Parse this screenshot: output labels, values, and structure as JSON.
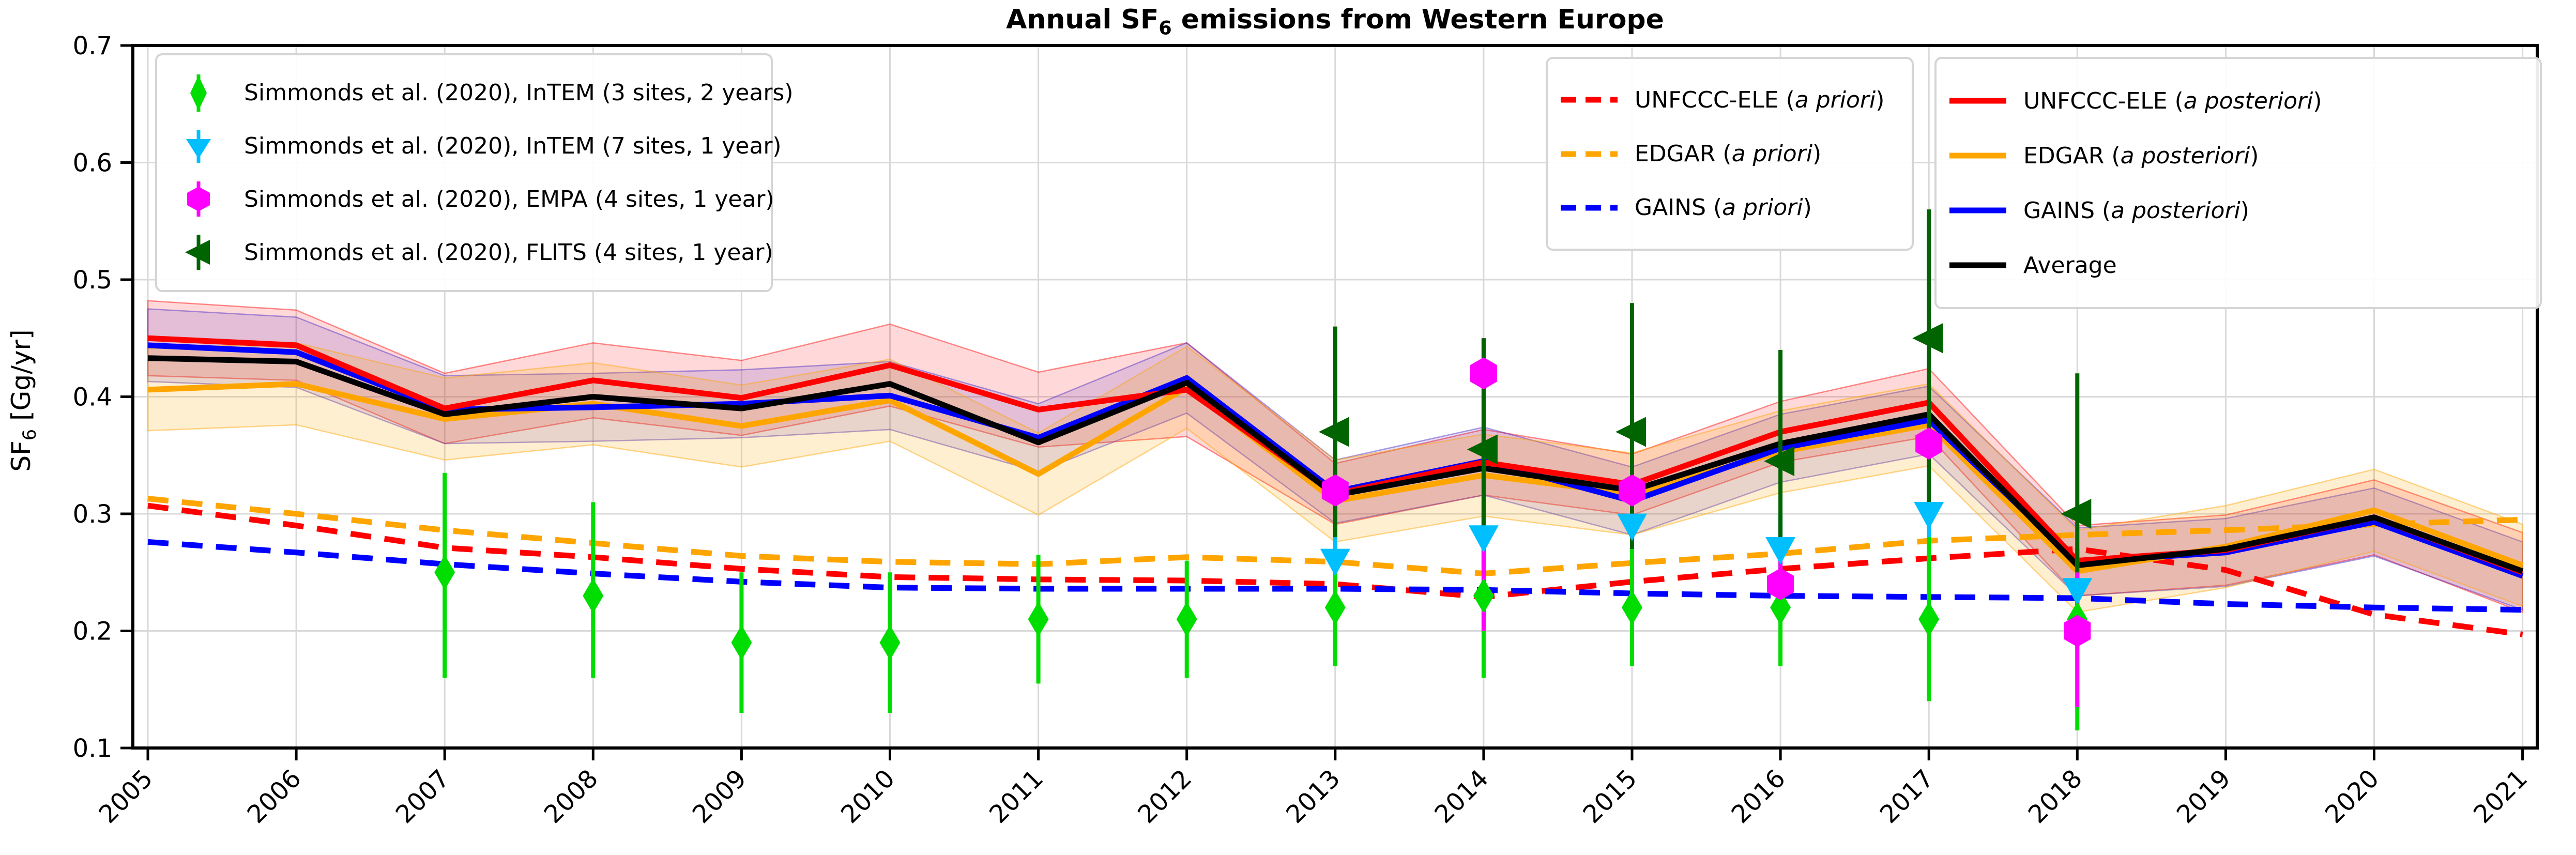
{
  "title": {
    "prefix": "Annual SF",
    "sub": "6",
    "suffix": " emissions from Western Europe"
  },
  "axes": {
    "ylabel": {
      "prefix": "SF",
      "sub": "6",
      "suffix": " [Gg/yr]"
    },
    "yticks": [
      "0.7",
      "0.6",
      "0.5",
      "0.4",
      "0.3",
      "0.2",
      "0.1"
    ],
    "ytick_values": [
      0.7,
      0.6,
      0.5,
      0.4,
      0.3,
      0.2,
      0.1
    ],
    "xticks": [
      "2005",
      "2006",
      "2007",
      "2008",
      "2009",
      "2010",
      "2011",
      "2012",
      "2013",
      "2014",
      "2015",
      "2016",
      "2017",
      "2018",
      "2019",
      "2020",
      "2021"
    ],
    "ylim": [
      0.1,
      0.7
    ],
    "grid": true
  },
  "colors": {
    "red": "#ff0000",
    "orange": "#ffa500",
    "blue": "#0000ff",
    "black": "#000000",
    "lime": "#00dd00",
    "cyan": "#00bfff",
    "magenta": "#ff00ff",
    "darkgreen": "#006400",
    "grid": "#d9d9d9",
    "spine": "#000000"
  },
  "chart_data": {
    "type": "line",
    "x": [
      2005,
      2006,
      2007,
      2008,
      2009,
      2010,
      2011,
      2012,
      2013,
      2014,
      2015,
      2016,
      2017,
      2018,
      2019,
      2020,
      2021
    ],
    "title": "Annual SF6 emissions from Western Europe",
    "xlabel": "",
    "ylabel": "SF6 [Gg/yr]",
    "ylim": [
      0.1,
      0.7
    ],
    "legend_position": "upper left / upper right",
    "series": [
      {
        "name": "UNFCCC-ELE (a priori)",
        "color": "#ff0000",
        "dash": true,
        "values": [
          0.307,
          0.29,
          0.271,
          0.263,
          0.253,
          0.246,
          0.244,
          0.243,
          0.24,
          0.229,
          0.242,
          0.253,
          0.262,
          0.27,
          0.252,
          0.214,
          0.197
        ]
      },
      {
        "name": "EDGAR (a priori)",
        "color": "#ffa500",
        "dash": true,
        "values": [
          0.313,
          0.3,
          0.286,
          0.275,
          0.264,
          0.259,
          0.257,
          0.263,
          0.259,
          0.249,
          0.258,
          0.266,
          0.277,
          0.282,
          0.286,
          0.291,
          0.295
        ]
      },
      {
        "name": "GAINS (a priori)",
        "color": "#0000ff",
        "dash": true,
        "values": [
          0.276,
          0.267,
          0.257,
          0.249,
          0.242,
          0.237,
          0.236,
          0.236,
          0.236,
          0.235,
          0.232,
          0.23,
          0.229,
          0.228,
          0.223,
          0.22,
          0.218
        ]
      },
      {
        "name": "UNFCCC-ELE (a posteriori)",
        "color": "#ff0000",
        "dash": false,
        "values": [
          0.45,
          0.444,
          0.39,
          0.414,
          0.399,
          0.427,
          0.389,
          0.406,
          0.317,
          0.344,
          0.325,
          0.37,
          0.395,
          0.26,
          0.269,
          0.297,
          0.25
        ]
      },
      {
        "name": "EDGAR (a posteriori)",
        "color": "#ffa500",
        "dash": false,
        "values": [
          0.406,
          0.411,
          0.381,
          0.394,
          0.375,
          0.397,
          0.334,
          0.408,
          0.311,
          0.333,
          0.317,
          0.353,
          0.376,
          0.251,
          0.272,
          0.303,
          0.256
        ]
      },
      {
        "name": "GAINS (a posteriori)",
        "color": "#0000ff",
        "dash": false,
        "values": [
          0.444,
          0.438,
          0.389,
          0.391,
          0.394,
          0.401,
          0.365,
          0.416,
          0.319,
          0.345,
          0.311,
          0.356,
          0.38,
          0.259,
          0.267,
          0.293,
          0.247
        ]
      },
      {
        "name": "Average",
        "color": "#000000",
        "dash": false,
        "values": [
          0.433,
          0.43,
          0.385,
          0.4,
          0.39,
          0.411,
          0.361,
          0.412,
          0.316,
          0.339,
          0.32,
          0.36,
          0.385,
          0.256,
          0.27,
          0.297,
          0.251
        ]
      }
    ],
    "bands": [
      {
        "name": "UNFCCC-ELE uncertainty",
        "color": "255,0,0",
        "alpha": 0.15,
        "hi": [
          0.482,
          0.474,
          0.42,
          0.446,
          0.431,
          0.462,
          0.421,
          0.446,
          0.343,
          0.372,
          0.351,
          0.396,
          0.424,
          0.29,
          0.299,
          0.329,
          0.284
        ],
        "lo": [
          0.418,
          0.414,
          0.36,
          0.382,
          0.367,
          0.392,
          0.357,
          0.366,
          0.291,
          0.316,
          0.299,
          0.344,
          0.366,
          0.23,
          0.239,
          0.265,
          0.216
        ]
      },
      {
        "name": "GAINS uncertainty",
        "color": "70,40,200",
        "alpha": 0.15,
        "hi": [
          0.475,
          0.468,
          0.418,
          0.42,
          0.423,
          0.43,
          0.394,
          0.446,
          0.346,
          0.374,
          0.34,
          0.385,
          0.409,
          0.288,
          0.296,
          0.322,
          0.276
        ],
        "lo": [
          0.413,
          0.408,
          0.36,
          0.362,
          0.365,
          0.372,
          0.336,
          0.386,
          0.292,
          0.316,
          0.282,
          0.327,
          0.351,
          0.23,
          0.238,
          0.264,
          0.218
        ]
      },
      {
        "name": "EDGAR uncertainty",
        "color": "255,165,0",
        "alpha": 0.18,
        "hi": [
          0.441,
          0.446,
          0.416,
          0.429,
          0.41,
          0.432,
          0.369,
          0.443,
          0.346,
          0.368,
          0.352,
          0.388,
          0.411,
          0.286,
          0.307,
          0.338,
          0.291
        ],
        "lo": [
          0.371,
          0.376,
          0.346,
          0.359,
          0.34,
          0.362,
          0.299,
          0.373,
          0.276,
          0.298,
          0.282,
          0.318,
          0.341,
          0.216,
          0.237,
          0.268,
          0.221
        ]
      }
    ],
    "scatter": [
      {
        "name": "Simmonds et al. (2020), InTEM (7 sites, 1 year)",
        "marker": "triangle-down",
        "color": "#00bfff",
        "years": [
          2013,
          2014,
          2015,
          2016,
          2017,
          2018
        ],
        "values": [
          0.26,
          0.28,
          0.29,
          0.27,
          0.3,
          0.235
        ],
        "err_lo": [
          0.23,
          0.25,
          0.26,
          0.24,
          0.24,
          0.19
        ],
        "err_hi": [
          0.29,
          0.31,
          0.32,
          0.3,
          0.33,
          0.27
        ]
      },
      {
        "name": "Simmonds et al. (2020), InTEM (3 sites, 2 years)",
        "marker": "thin-diamond",
        "color": "#00dd00",
        "years": [
          2007,
          2008,
          2009,
          2010,
          2011,
          2012,
          2013,
          2014,
          2015,
          2016,
          2017,
          2018
        ],
        "values": [
          0.25,
          0.23,
          0.19,
          0.19,
          0.21,
          0.21,
          0.22,
          0.23,
          0.22,
          0.22,
          0.21,
          0.21
        ],
        "err_lo": [
          0.16,
          0.16,
          0.13,
          0.13,
          0.155,
          0.16,
          0.17,
          0.16,
          0.17,
          0.17,
          0.14,
          0.115
        ],
        "err_hi": [
          0.335,
          0.31,
          0.25,
          0.25,
          0.265,
          0.26,
          0.27,
          0.3,
          0.27,
          0.27,
          0.28,
          0.27
        ]
      },
      {
        "name": "Simmonds et al. (2020), EMPA (4 sites, 1 year)",
        "marker": "hexagon",
        "color": "#ff00ff",
        "years": [
          2013,
          2014,
          2015,
          2016,
          2017,
          2018
        ],
        "values": [
          0.32,
          0.42,
          0.32,
          0.24,
          0.36,
          0.2
        ],
        "err_lo": [
          0.3,
          0.2,
          0.3,
          0.22,
          0.34,
          0.135
        ],
        "err_hi": [
          0.34,
          0.45,
          0.34,
          0.26,
          0.38,
          0.25
        ]
      },
      {
        "name": "Simmonds et al. (2020), FLITS (4 sites, 1 year)",
        "marker": "triangle-left",
        "color": "#006400",
        "years": [
          2013,
          2014,
          2015,
          2016,
          2017,
          2018
        ],
        "values": [
          0.37,
          0.355,
          0.37,
          0.345,
          0.45,
          0.3
        ],
        "err_lo": [
          0.28,
          0.27,
          0.27,
          0.27,
          0.31,
          0.25
        ],
        "err_hi": [
          0.46,
          0.45,
          0.48,
          0.44,
          0.56,
          0.42
        ]
      }
    ]
  },
  "legend_markers": {
    "items": [
      {
        "label": "Simmonds et al. (2020), InTEM (3 sites, 2 years)",
        "marker": "thin-diamond",
        "color": "#00dd00"
      },
      {
        "label": "Simmonds et al. (2020), InTEM (7 sites, 1 year)",
        "marker": "triangle-down",
        "color": "#00bfff"
      },
      {
        "label": "Simmonds et al. (2020), EMPA (4 sites, 1 year)",
        "marker": "hexagon",
        "color": "#ff00ff"
      },
      {
        "label": "Simmonds et al. (2020), FLITS (4 sites, 1 year)",
        "marker": "triangle-left",
        "color": "#006400"
      }
    ]
  },
  "legend_priori": {
    "items": [
      {
        "label": "UNFCCC-ELE",
        "qualifier": "a priori",
        "color": "#ff0000",
        "dash": true
      },
      {
        "label": "EDGAR",
        "qualifier": "a priori",
        "color": "#ffa500",
        "dash": true
      },
      {
        "label": "GAINS",
        "qualifier": "a priori",
        "color": "#0000ff",
        "dash": true
      }
    ]
  },
  "legend_posteriori": {
    "items": [
      {
        "label": "UNFCCC-ELE",
        "qualifier": "a posteriori",
        "color": "#ff0000",
        "dash": false
      },
      {
        "label": "EDGAR",
        "qualifier": "a posteriori",
        "color": "#ffa500",
        "dash": false
      },
      {
        "label": "GAINS",
        "qualifier": "a posteriori",
        "color": "#0000ff",
        "dash": false
      },
      {
        "label": "Average",
        "qualifier": null,
        "color": "#000000",
        "dash": false
      }
    ]
  }
}
